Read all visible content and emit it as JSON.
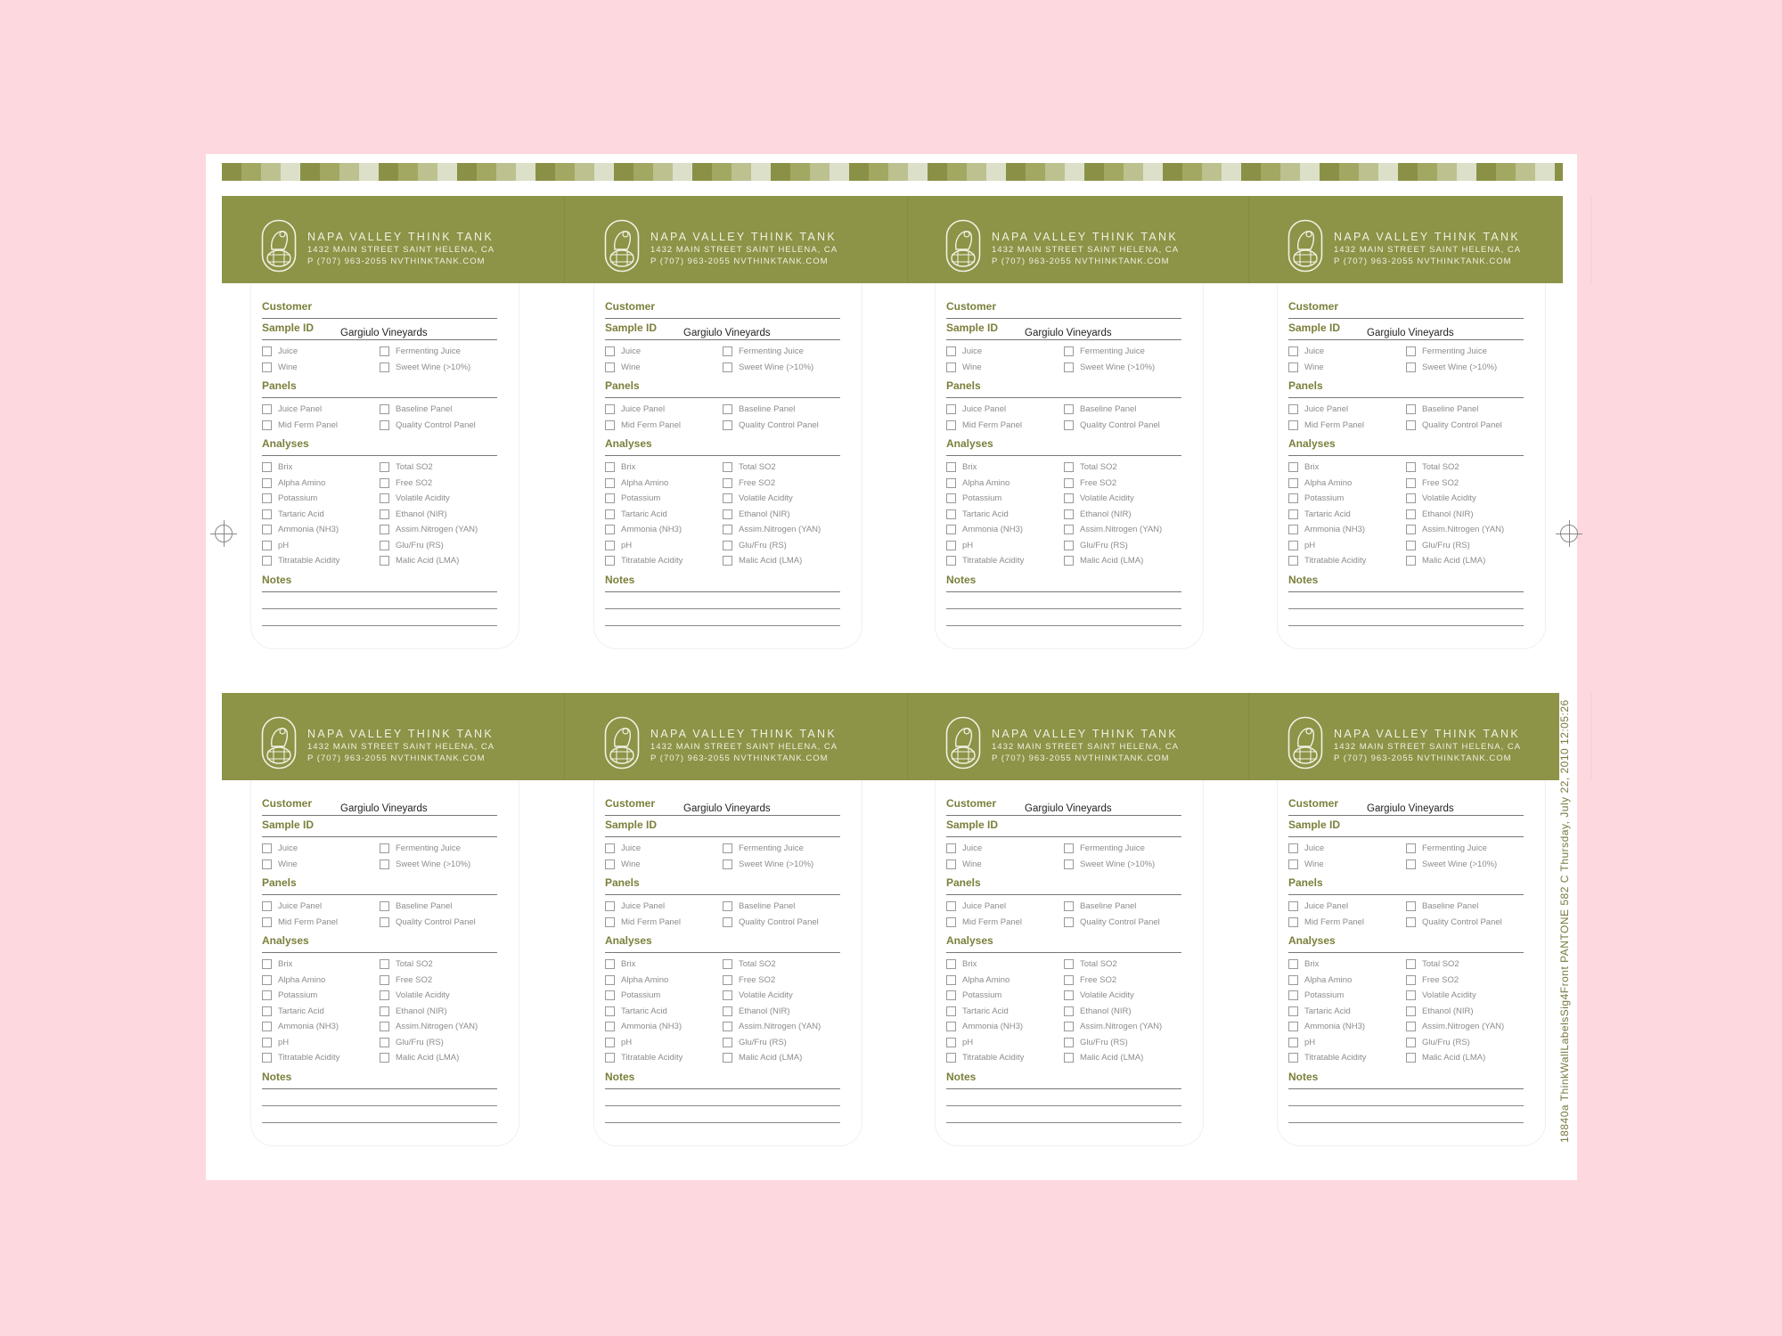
{
  "brand": {
    "name": "NAPA VALLEY THINK TANK",
    "address": "1432 MAIN STREET SAINT HELENA, CA",
    "contact": "P (707) 963-2055   NVTHINKTANK.COM"
  },
  "sections": {
    "customer": "Customer",
    "sample_id": "Sample ID",
    "panels": "Panels",
    "analyses": "Analyses",
    "notes": "Notes"
  },
  "sample_options": [
    "Juice",
    "Fermenting Juice",
    "Wine",
    "Sweet Wine (>10%)"
  ],
  "panel_options": [
    "Juice Panel",
    "Baseline Panel",
    "Mid Ferm Panel",
    "Quality Control Panel"
  ],
  "analysis_options": [
    "Brix",
    "Total SO2",
    "Alpha Amino",
    "Free SO2",
    "Potassium",
    "Volatile Acidity",
    "Tartaric Acid",
    "Ethanol (NIR)",
    "Ammonia (NH3)",
    "Assim.Nitrogen (YAN)",
    "pH",
    "Glu/Fru (RS)",
    "Titratable Acidity",
    "Malic Acid (LMA)"
  ],
  "labels": [
    {
      "handwritten": "Gargiulo Vineyards",
      "written_on": "sample_id"
    },
    {
      "handwritten": "Gargiulo Vineyards",
      "written_on": "sample_id"
    },
    {
      "handwritten": "Gargiulo Vineyards",
      "written_on": "sample_id"
    },
    {
      "handwritten": "Gargiulo Vineyards",
      "written_on": "sample_id"
    },
    {
      "handwritten": "Gargiulo Vineyards",
      "written_on": "customer"
    },
    {
      "handwritten": "Gargiulo Vineyards",
      "written_on": "customer"
    },
    {
      "handwritten": "Gargiulo Vineyards",
      "written_on": "customer"
    },
    {
      "handwritten": "Gargiulo Vineyards",
      "written_on": "customer"
    }
  ],
  "print_slug": "18840a   ThinkWallLabelsSig4Front     PANTONE 582 C   Thursday, July 22, 2010  12:05:26",
  "colors": {
    "brand_olive": "#8d9347",
    "heading_olive": "#7b7f3a",
    "background_pink": "#fdd9df"
  }
}
